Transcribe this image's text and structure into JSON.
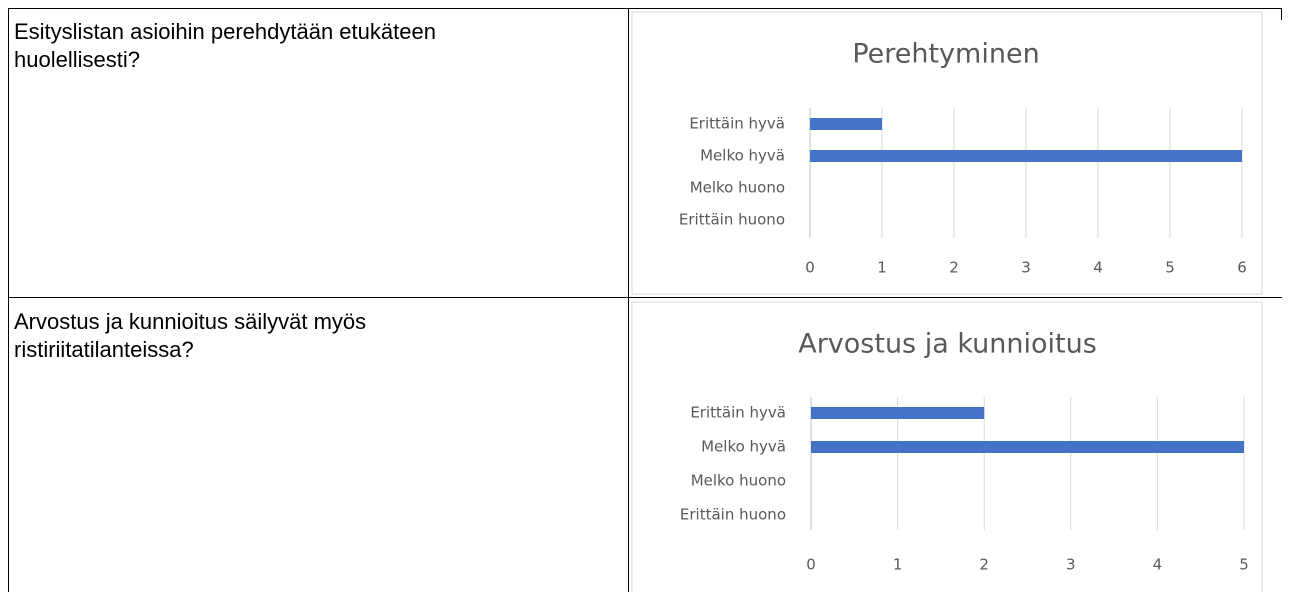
{
  "rows": [
    {
      "question": [
        "Esityslistan asioihin perehdytään etukäteen",
        "huolellisesti?"
      ]
    },
    {
      "question": [
        "Arvostus ja kunnioitus säilyvät myös",
        "ristiriitatilanteissa?"
      ]
    }
  ],
  "chart_data": [
    {
      "type": "bar",
      "orientation": "horizontal",
      "title": "Perehtyminen",
      "categories": [
        "Erittäin hyvä",
        "Melko hyvä",
        "Melko huono",
        "Erittäin huono"
      ],
      "values": [
        1,
        6,
        0,
        0
      ],
      "color": "#4472c4",
      "xlim": [
        0,
        6
      ],
      "xticks": [
        0,
        1,
        2,
        3,
        4,
        5,
        6
      ],
      "grid": true
    },
    {
      "type": "bar",
      "orientation": "horizontal",
      "title": "Arvostus ja kunnioitus",
      "categories": [
        "Erittäin hyvä",
        "Melko hyvä",
        "Melko huono",
        "Erittäin huono"
      ],
      "values": [
        2,
        5,
        0,
        0
      ],
      "color": "#4472c4",
      "xlim": [
        0,
        5
      ],
      "xticks": [
        0,
        1,
        2,
        3,
        4,
        5
      ],
      "grid": true
    }
  ]
}
